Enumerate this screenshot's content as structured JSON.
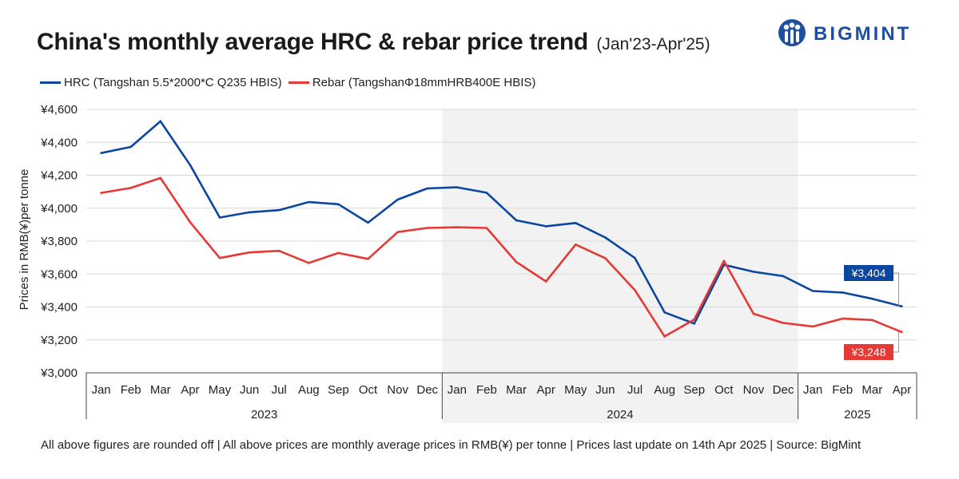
{
  "header": {
    "title": "China's monthly average HRC & rebar price trend",
    "subtitle": "(Jan'23-Apr'25)"
  },
  "logo": {
    "text": "BIGMINT"
  },
  "legend": {
    "hrc": "HRC (Tangshan 5.5*2000*C Q235 HBIS)",
    "rebar": "Rebar (TangshanΦ18mmHRB400E HBIS)"
  },
  "footer": "All above figures are rounded off | All above prices are monthly average prices in RMB(¥) per tonne | Prices last update on 14th Apr 2025 | Source: BigMint",
  "colors": {
    "hrc": "#0b46a0",
    "rebar": "#e53935",
    "shade": "#f2f2f2"
  },
  "chart_data": {
    "type": "line",
    "title": "China's monthly average HRC & rebar price trend",
    "ylabel": "Prices in RMB(¥)per tonne",
    "ylim": [
      3000,
      4600
    ],
    "yticks": [
      4600,
      4400,
      4200,
      4000,
      3800,
      3600,
      3400,
      3200,
      3000
    ],
    "ytick_labels": [
      "¥4,600",
      "¥4,400",
      "¥4,200",
      "¥4,000",
      "¥3,800",
      "¥3,600",
      "¥3,400",
      "¥3,200",
      "¥3,000"
    ],
    "categories": [
      "Jan",
      "Feb",
      "Mar",
      "Apr",
      "May",
      "Jun",
      "Jul",
      "Aug",
      "Sep",
      "Oct",
      "Nov",
      "Dec",
      "Jan",
      "Feb",
      "Mar",
      "Apr",
      "May",
      "Jun",
      "Jul",
      "Aug",
      "Sep",
      "Oct",
      "Nov",
      "Dec",
      "Jan",
      "Feb",
      "Mar",
      "Apr"
    ],
    "year_groups": [
      {
        "label": "2023",
        "start": 0,
        "end": 11,
        "shaded": false
      },
      {
        "label": "2024",
        "start": 12,
        "end": 23,
        "shaded": true
      },
      {
        "label": "2025",
        "start": 24,
        "end": 27,
        "shaded": false
      }
    ],
    "series": [
      {
        "name": "HRC (Tangshan 5.5*2000*C Q235 HBIS)",
        "key": "hrc",
        "values": [
          4335,
          4372,
          4528,
          4262,
          3943,
          3975,
          3988,
          4037,
          4024,
          3912,
          4052,
          4120,
          4127,
          4094,
          3926,
          3890,
          3910,
          3822,
          3697,
          3367,
          3299,
          3656,
          3614,
          3587,
          3497,
          3488,
          3450,
          3404
        ],
        "end_label": "¥3,404"
      },
      {
        "name": "Rebar (TangshanΦ18mmHRB400E HBIS)",
        "key": "rebar",
        "values": [
          4093,
          4123,
          4183,
          3915,
          3697,
          3731,
          3741,
          3667,
          3728,
          3692,
          3855,
          3880,
          3884,
          3880,
          3673,
          3555,
          3779,
          3696,
          3502,
          3221,
          3324,
          3680,
          3359,
          3303,
          3281,
          3329,
          3321,
          3248
        ],
        "end_label": "¥3,248"
      }
    ],
    "grid": true,
    "legend": "top-left"
  }
}
